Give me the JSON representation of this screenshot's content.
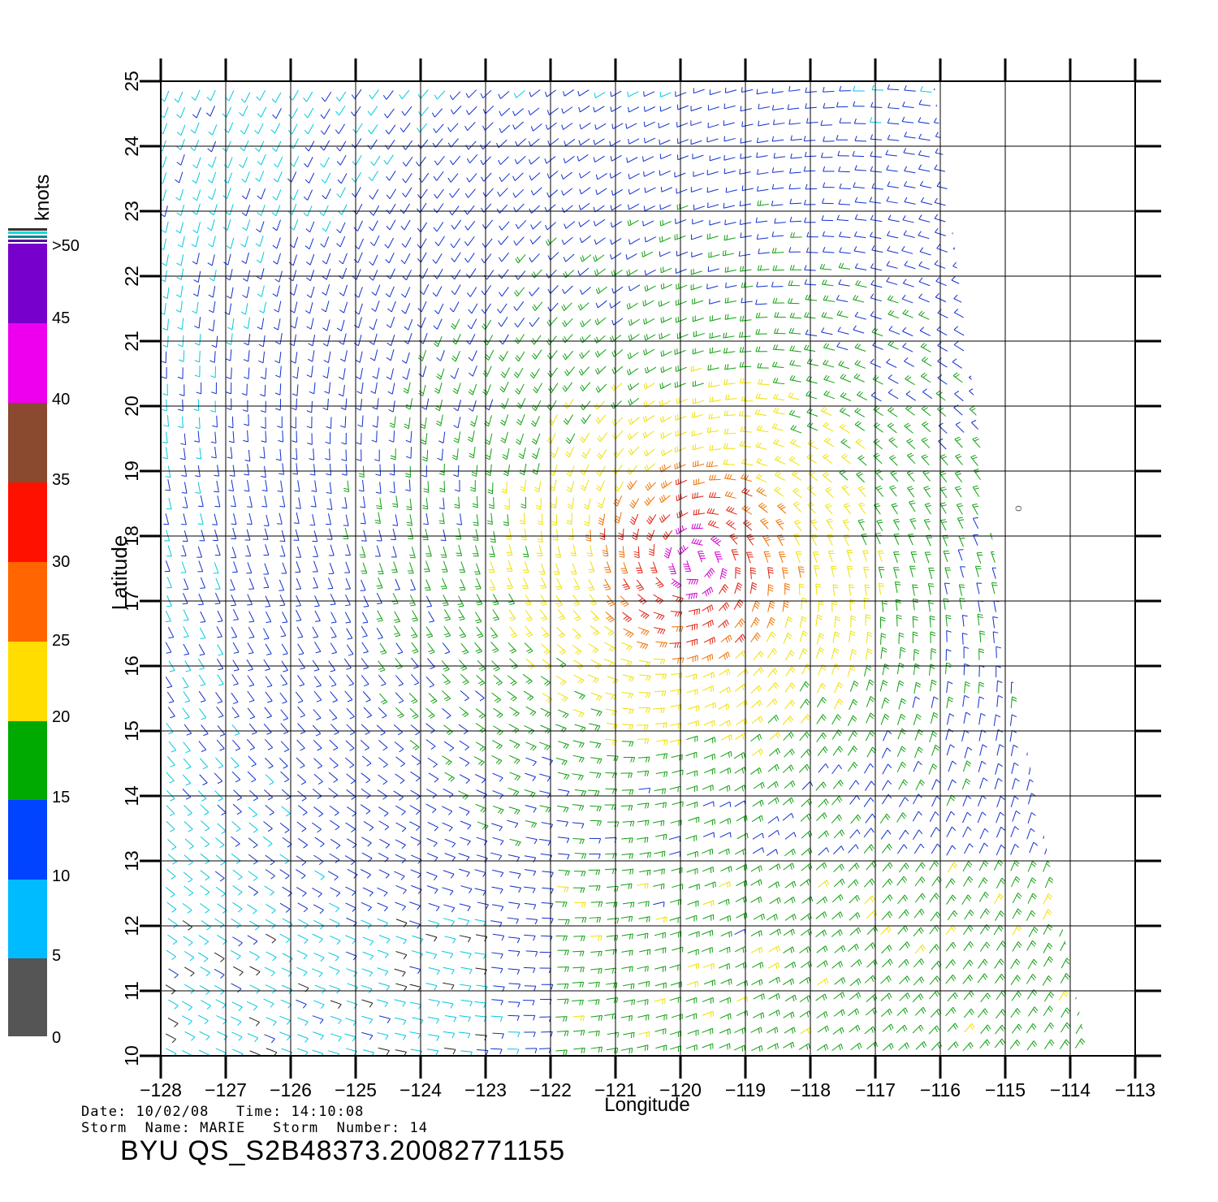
{
  "colorbar": {
    "unit_label": "knots",
    "ticks": [
      "0",
      "5",
      "10",
      "15",
      "20",
      "25",
      "30",
      "35",
      "40",
      "45",
      ">50"
    ],
    "colors": {
      "0-5": [
        "#7a7a7a",
        "#000000"
      ],
      "5-10": [
        "#00ffff",
        "#0070ff"
      ],
      "10-15": [
        "#0060ff",
        "#0000ee"
      ],
      "15-20": [
        "#00ff00",
        "#006600"
      ],
      "20-25": [
        "#ffff00",
        "#ffcc00"
      ],
      "25-30": [
        "#ff9900",
        "#cc3300"
      ],
      "30-35": [
        "#ff0000",
        "#ff3300"
      ],
      "35-40": [
        "#cc8866",
        "#330000"
      ],
      "40-45": [
        "#ff00ff",
        "#cc00cc"
      ],
      "45-50": [
        "#9900cc",
        "#6600cc"
      ]
    }
  },
  "map": {
    "x_axis_label": "Longitude",
    "y_axis_label": "Latitude",
    "lon_range": [
      -128,
      -113
    ],
    "lat_range": [
      10,
      25
    ],
    "lon_ticks": [
      "−128",
      "−127",
      "−126",
      "−125",
      "−124",
      "−123",
      "−122",
      "−121",
      "−120",
      "−119",
      "−118",
      "−117",
      "−116",
      "−115",
      "−114",
      "−113"
    ],
    "lat_ticks": [
      "10",
      "11",
      "12",
      "13",
      "14",
      "15",
      "16",
      "17",
      "18",
      "19",
      "20",
      "21",
      "22",
      "23",
      "24",
      "25"
    ],
    "storm_center": {
      "lon": -119.8,
      "lat": 17.6
    },
    "wind_field": "cyclonic vortex; speed in knots color coded by colorbar",
    "stray_mark": "o"
  },
  "footer": {
    "date_label": "Date:",
    "date_value": "10/02/08",
    "time_label": "Time:",
    "time_value": "14:10:08",
    "storm_name_label": "Storm  Name:",
    "storm_name_value": "MARIE",
    "storm_number_label": "Storm  Number:",
    "storm_number_value": "14",
    "product_id": "BYU  QS_S2B48373.20082771155"
  }
}
